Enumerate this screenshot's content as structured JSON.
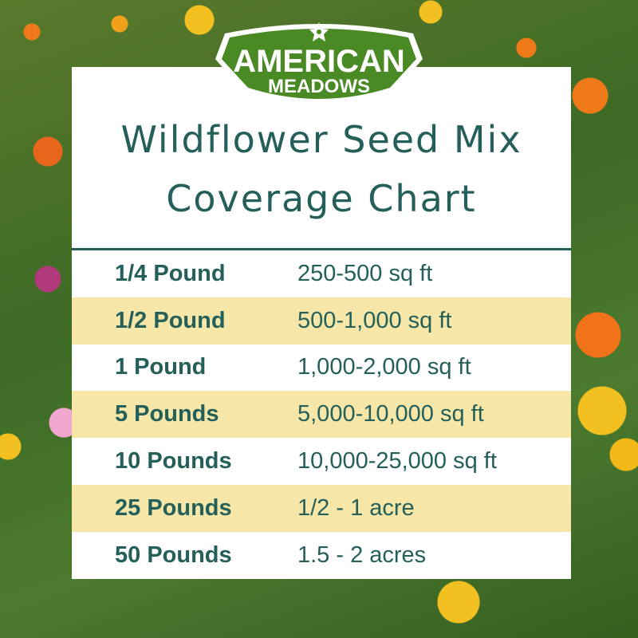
{
  "logo": {
    "line1": "AMERICAN",
    "line2": "MEADOWS",
    "icon": "flower-icon",
    "color": "#4a8a24"
  },
  "title": {
    "line1": "Wildflower Seed Mix",
    "line2": "Coverage Chart"
  },
  "colors": {
    "text": "#245f5a",
    "band": "#f6e7a8"
  },
  "rows": [
    {
      "amount": "1/4 Pound",
      "coverage": "250-500 sq ft"
    },
    {
      "amount": "1/2 Pound",
      "coverage": "500-1,000 sq ft"
    },
    {
      "amount": "1 Pound",
      "coverage": "1,000-2,000 sq ft"
    },
    {
      "amount": "5 Pounds",
      "coverage": "5,000-10,000 sq ft"
    },
    {
      "amount": "10 Pounds",
      "coverage": "10,000-25,000 sq ft"
    },
    {
      "amount": "25 Pounds",
      "coverage": "1/2 - 1 acre"
    },
    {
      "amount": "50 Pounds",
      "coverage": "1.5 - 2 acres"
    }
  ]
}
